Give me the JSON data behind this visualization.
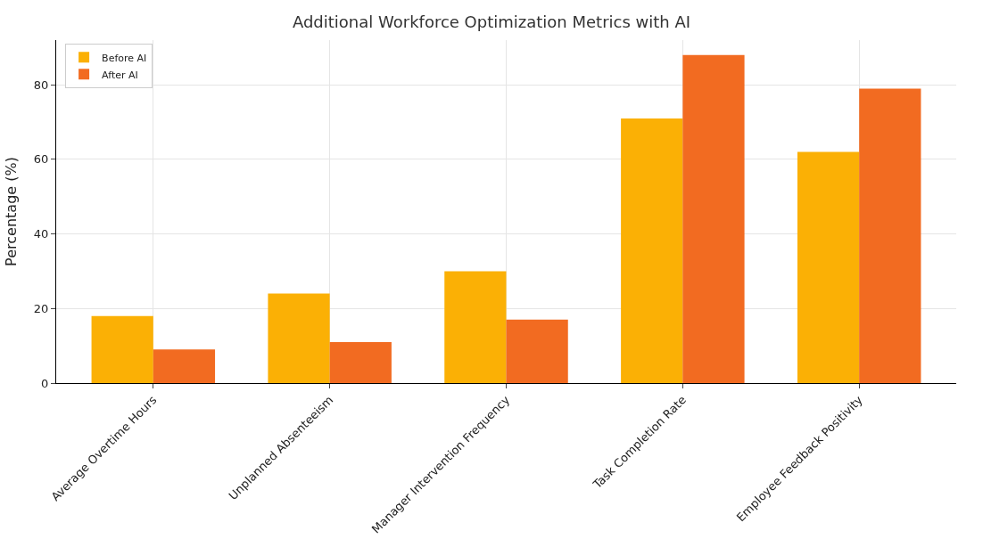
{
  "chart_data": {
    "type": "bar",
    "title": "Additional Workforce Optimization Metrics with AI",
    "ylabel": "Percentage (%)",
    "categories": [
      "Average Overtime Hours",
      "Unplanned Absenteeism",
      "Manager Intervention Frequency",
      "Task Completion Rate",
      "Employee Feedback Positivity"
    ],
    "series": [
      {
        "name": "Before AI",
        "color": "#fbb005",
        "values": [
          18,
          24,
          30,
          71,
          62
        ]
      },
      {
        "name": "After AI",
        "color": "#f26b21",
        "values": [
          9,
          11,
          17,
          88,
          79
        ]
      }
    ],
    "ylim": [
      0,
      92
    ],
    "yticks": [
      0,
      20,
      40,
      60,
      80
    ],
    "grid": true,
    "legend": "top left"
  }
}
